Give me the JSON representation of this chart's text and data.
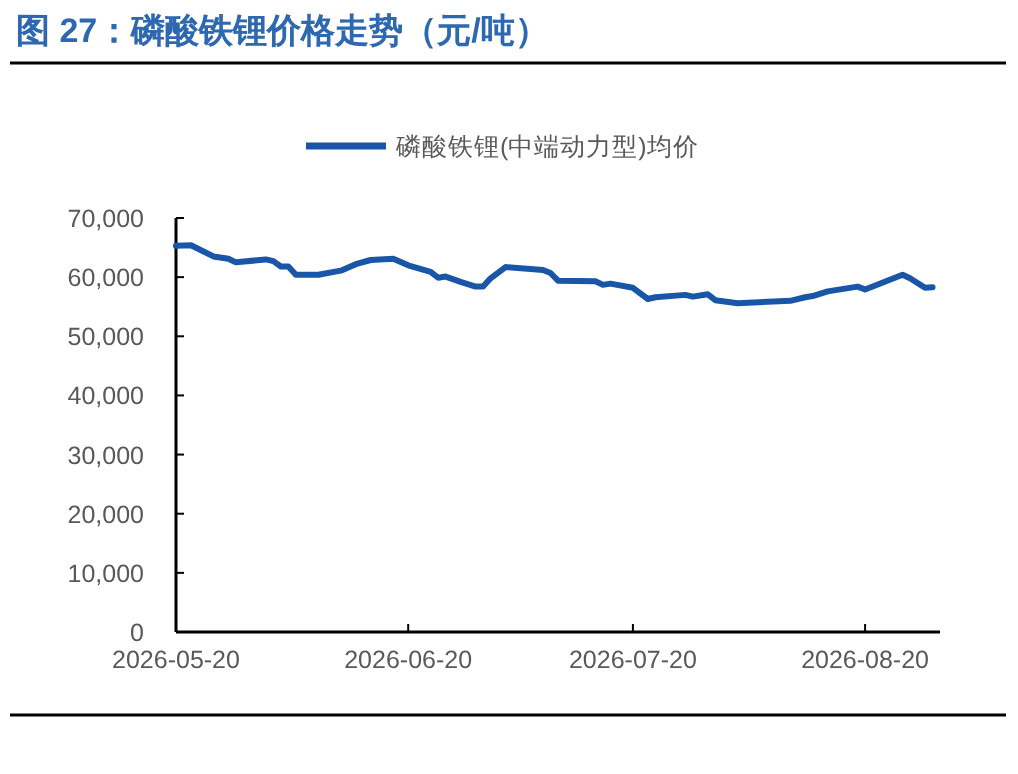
{
  "chart_data": {
    "type": "line",
    "title": "图 27：磷酸铁锂价格走势（元/吨）",
    "legend": "top",
    "grid": false,
    "marker": "none",
    "line_style": "solid",
    "xlim": [
      "2026-05-20",
      "2026-08-30"
    ],
    "xticks": [
      {
        "value": "2026-05-20",
        "label": "2026-05-20"
      },
      {
        "value": "2026-06-20",
        "label": "2026-06-20"
      },
      {
        "value": "2026-07-20",
        "label": "2026-07-20"
      },
      {
        "value": "2026-08-20",
        "label": "2026-08-20"
      }
    ],
    "ylim": [
      0,
      70000
    ],
    "yticks": [
      {
        "value": 0,
        "label": "0"
      },
      {
        "value": 10000,
        "label": "10,000"
      },
      {
        "value": 20000,
        "label": "20,000"
      },
      {
        "value": 30000,
        "label": "30,000"
      },
      {
        "value": 40000,
        "label": "40,000"
      },
      {
        "value": 50000,
        "label": "50,000"
      },
      {
        "value": 60000,
        "label": "60,000"
      },
      {
        "value": 70000,
        "label": "70,000"
      }
    ],
    "x": [
      "2026-05-20",
      "2026-05-22",
      "2026-05-25",
      "2026-05-27",
      "2026-05-28",
      "2026-06-01",
      "2026-06-02",
      "2026-06-03",
      "2026-06-04",
      "2026-06-05",
      "2026-06-08",
      "2026-06-11",
      "2026-06-13",
      "2026-06-15",
      "2026-06-18",
      "2026-06-20",
      "2026-06-23",
      "2026-06-24",
      "2026-06-25",
      "2026-06-27",
      "2026-06-29",
      "2026-06-30",
      "2026-07-01",
      "2026-07-03",
      "2026-07-08",
      "2026-07-09",
      "2026-07-10",
      "2026-07-15",
      "2026-07-16",
      "2026-07-17",
      "2026-07-20",
      "2026-07-22",
      "2026-07-23",
      "2026-07-27",
      "2026-07-28",
      "2026-07-30",
      "2026-07-31",
      "2026-08-03",
      "2026-08-10",
      "2026-08-12",
      "2026-08-13",
      "2026-08-15",
      "2026-08-19",
      "2026-08-20",
      "2026-08-25",
      "2026-08-26",
      "2026-08-28",
      "2026-08-29"
    ],
    "series": [
      {
        "name": "磷酸铁锂(中端动力型)均价",
        "color": "#1a56a8",
        "values": [
          65300,
          65400,
          63500,
          63100,
          62500,
          63000,
          62700,
          61800,
          61800,
          60400,
          60400,
          61100,
          62200,
          62900,
          63100,
          62000,
          60900,
          59900,
          60100,
          59200,
          58400,
          58400,
          59800,
          61700,
          61200,
          60700,
          59400,
          59300,
          58700,
          58900,
          58200,
          56300,
          56600,
          57000,
          56700,
          57100,
          56100,
          55600,
          56000,
          56600,
          56800,
          57600,
          58400,
          57900,
          60400,
          59800,
          58200,
          58300
        ]
      }
    ]
  }
}
